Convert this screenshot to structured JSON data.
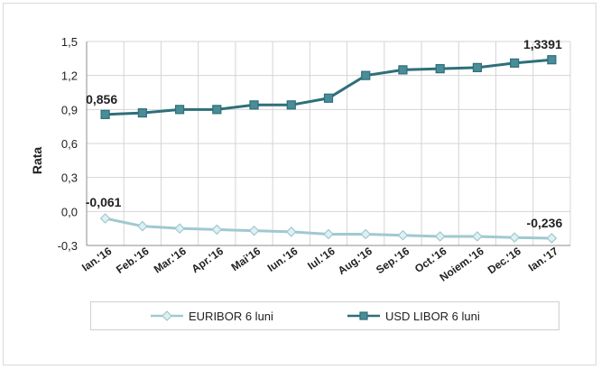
{
  "chart_data": {
    "type": "line",
    "categories": [
      "Ian.'16",
      "Feb.'16",
      "Mar.'16",
      "Apr.'16",
      "Mai'16",
      "Iun.'16",
      "Iul.'16",
      "Aug.'16",
      "Sep.'16",
      "Oct.'16",
      "Noiem.'16",
      "Dec.'16",
      "Ian.'17"
    ],
    "ylabel": "Rata",
    "ylim": [
      -0.3,
      1.5
    ],
    "yticks": [
      -0.3,
      0.0,
      0.3,
      0.6,
      0.9,
      1.2,
      1.5
    ],
    "ytick_labels": [
      "-0,3",
      "0,0",
      "0,3",
      "0,6",
      "0,9",
      "1,2",
      "1,5"
    ],
    "grid": true,
    "legend_position": "bottom",
    "series": [
      {
        "name": "EURIBOR 6 luni",
        "color": "#9fc9d0",
        "marker": "diamond",
        "values": [
          -0.061,
          -0.13,
          -0.15,
          -0.16,
          -0.17,
          -0.18,
          -0.2,
          -0.2,
          -0.21,
          -0.22,
          -0.22,
          -0.23,
          -0.236
        ]
      },
      {
        "name": "USD LIBOR 6 luni",
        "color": "#2e6f7a",
        "marker": "square",
        "values": [
          0.856,
          0.87,
          0.9,
          0.9,
          0.94,
          0.94,
          1.0,
          1.2,
          1.25,
          1.26,
          1.27,
          1.31,
          1.3391
        ]
      }
    ],
    "annotations": [
      {
        "text": "0,856",
        "series": 1,
        "index": 0
      },
      {
        "text": "1,3391",
        "series": 1,
        "index": 12
      },
      {
        "text": "-0,061",
        "series": 0,
        "index": 0
      },
      {
        "text": "-0,236",
        "series": 0,
        "index": 12
      }
    ]
  }
}
